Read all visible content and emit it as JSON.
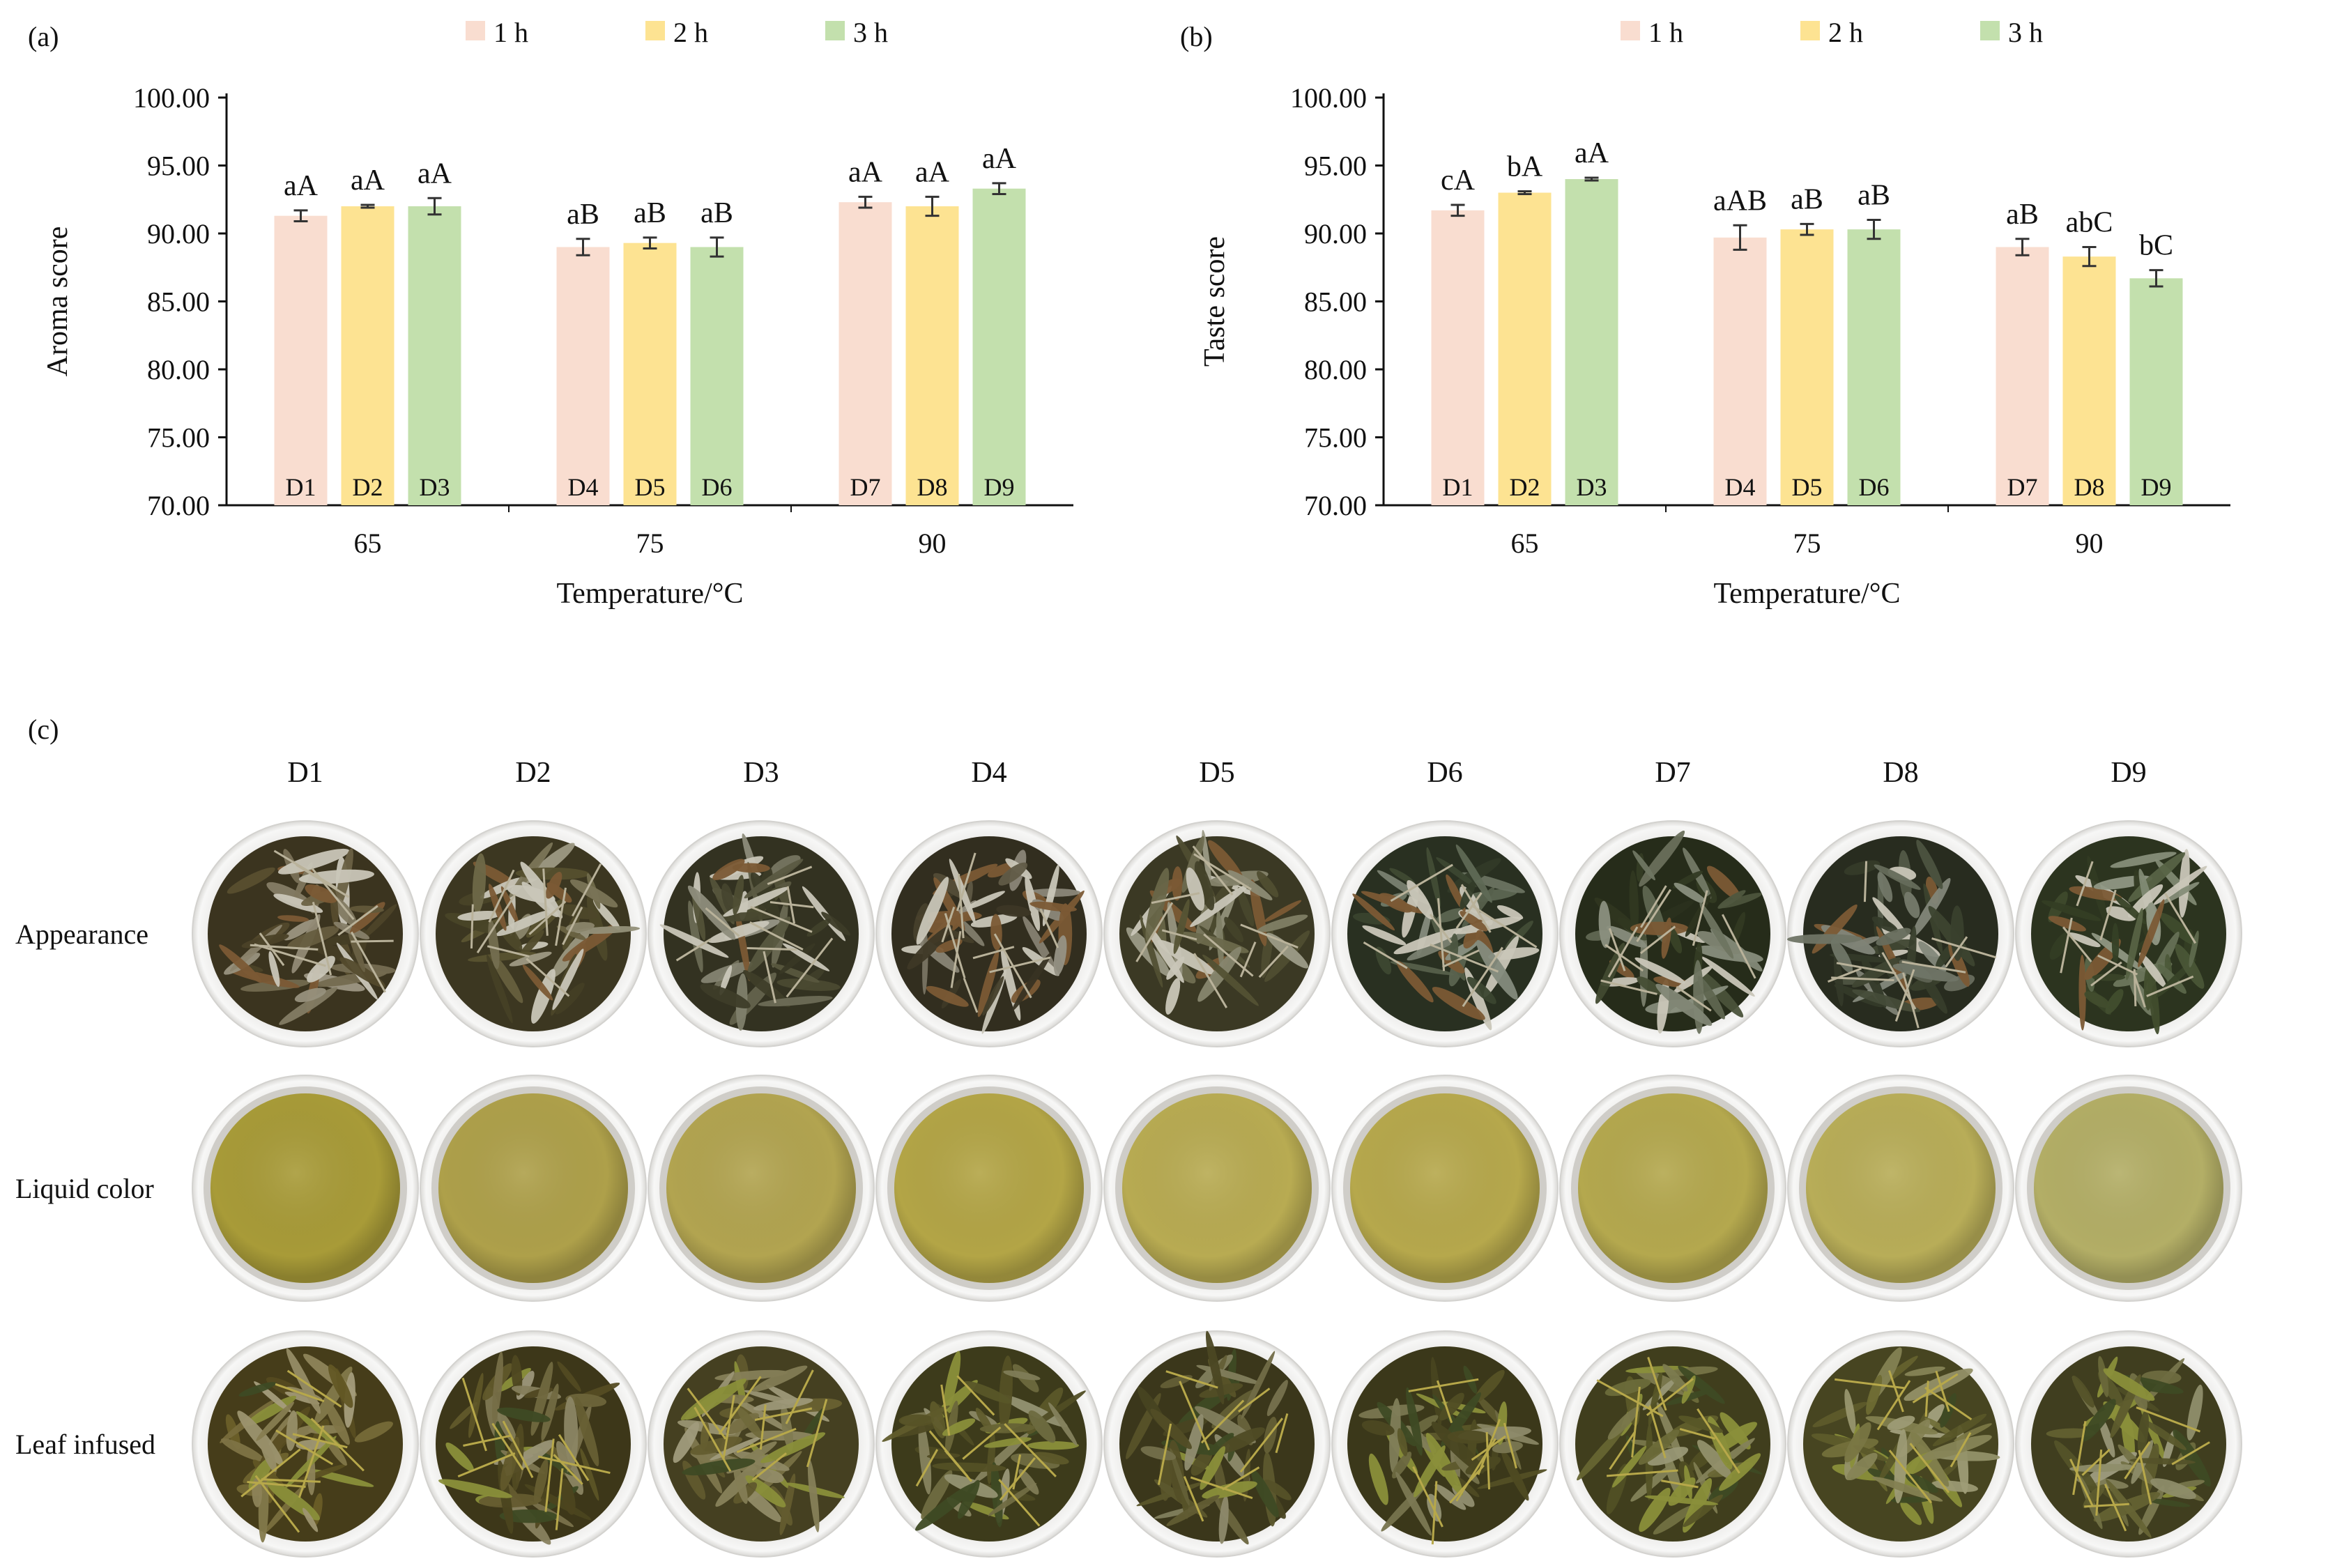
{
  "panel_labels": [
    "(a)",
    "(b)",
    "(c)"
  ],
  "legend": [
    {
      "name": "1 h",
      "color": "#f9ddd0"
    },
    {
      "name": "2 h",
      "color": "#fde392"
    },
    {
      "name": "3 h",
      "color": "#c3e0ad"
    }
  ],
  "chart_data": [
    {
      "type": "bar",
      "title": "",
      "xlabel": "Temperature/°C",
      "ylabel": "Aroma score",
      "categories": [
        "65",
        "75",
        "90"
      ],
      "ylim": [
        70,
        100
      ],
      "yticks": [
        "70.00",
        "75.00",
        "80.00",
        "85.00",
        "90.00",
        "95.00",
        "100.00"
      ],
      "series": [
        {
          "name": "1 h",
          "values": [
            91.3,
            89.0,
            92.3
          ],
          "errors": [
            0.4,
            0.6,
            0.4
          ],
          "labels": [
            "aA",
            "aB",
            "aA"
          ],
          "samples": [
            "D1",
            "D4",
            "D7"
          ]
        },
        {
          "name": "2 h",
          "values": [
            92.0,
            89.3,
            92.0
          ],
          "errors": [
            0.1,
            0.4,
            0.7
          ],
          "labels": [
            "aA",
            "aB",
            "aA"
          ],
          "samples": [
            "D2",
            "D5",
            "D8"
          ]
        },
        {
          "name": "3 h",
          "values": [
            92.0,
            89.0,
            93.3
          ],
          "errors": [
            0.6,
            0.7,
            0.4
          ],
          "labels": [
            "aA",
            "aB",
            "aA"
          ],
          "samples": [
            "D3",
            "D6",
            "D9"
          ]
        }
      ]
    },
    {
      "type": "bar",
      "title": "",
      "xlabel": "Temperature/°C",
      "ylabel": "Taste score",
      "categories": [
        "65",
        "75",
        "90"
      ],
      "ylim": [
        70,
        100
      ],
      "yticks": [
        "70.00",
        "75.00",
        "80.00",
        "85.00",
        "90.00",
        "95.00",
        "100.00"
      ],
      "series": [
        {
          "name": "1 h",
          "values": [
            91.7,
            89.7,
            89.0
          ],
          "errors": [
            0.4,
            0.9,
            0.6
          ],
          "labels": [
            "cA",
            "aAB",
            "aB"
          ],
          "samples": [
            "D1",
            "D4",
            "D7"
          ]
        },
        {
          "name": "2 h",
          "values": [
            93.0,
            90.3,
            88.3
          ],
          "errors": [
            0.1,
            0.4,
            0.7
          ],
          "labels": [
            "bA",
            "aB",
            "abC"
          ],
          "samples": [
            "D2",
            "D5",
            "D8"
          ]
        },
        {
          "name": "3 h",
          "values": [
            94.0,
            90.3,
            86.7
          ],
          "errors": [
            0.1,
            0.7,
            0.6
          ],
          "labels": [
            "aA",
            "aB",
            "bC"
          ],
          "samples": [
            "D3",
            "D6",
            "D9"
          ]
        }
      ]
    }
  ],
  "photo_grid": {
    "columns": [
      "D1",
      "D2",
      "D3",
      "D4",
      "D5",
      "D6",
      "D7",
      "D8",
      "D9"
    ],
    "rows": [
      {
        "label": "Appearance",
        "type": "dry",
        "colors": [
          "#5a5030",
          "#5c5532",
          "#4e4d33",
          "#4d4630",
          "#5a5838",
          "#3f4a33",
          "#3a4328",
          "#3d4430",
          "#43502f"
        ]
      },
      {
        "label": "Liquid color",
        "type": "liquid",
        "colors": [
          "#a89b38",
          "#aea04a",
          "#b2a450",
          "#b3a546",
          "#b8ab52",
          "#b6a84c",
          "#b4a84e",
          "#b8ad58",
          "#b3ae66"
        ]
      },
      {
        "label": "Leaf infused",
        "type": "wet",
        "colors": [
          "#6b5e28",
          "#5e5527",
          "#6a6232",
          "#5e5a2a",
          "#5a552a",
          "#5a5628",
          "#62602c",
          "#6d6a32",
          "#626030"
        ]
      }
    ]
  }
}
